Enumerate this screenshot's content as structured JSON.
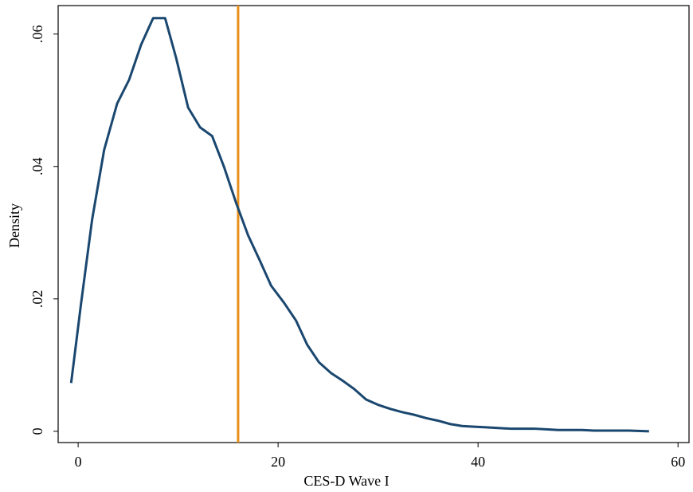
{
  "chart_data": {
    "type": "line",
    "xlabel": "CES-D Wave I",
    "ylabel": "Density",
    "x": [
      -0.7,
      0.3,
      1.4,
      2.6,
      3.9,
      5.1,
      6.3,
      7.5,
      8.7,
      9.8,
      11.0,
      12.2,
      13.4,
      14.6,
      15.8,
      17.0,
      18.2,
      19.3,
      20.6,
      21.8,
      22.9,
      24.1,
      25.3,
      26.5,
      27.6,
      28.8,
      30.0,
      31.2,
      32.4,
      33.6,
      34.8,
      36.0,
      37.2,
      38.4,
      39.6,
      40.8,
      42.0,
      43.2,
      44.4,
      45.6,
      46.8,
      48.0,
      49.2,
      50.4,
      51.6,
      52.7,
      53.9,
      55.1,
      57.1
    ],
    "series": [
      {
        "color": "#1a476f",
        "values": [
          0.0073,
          0.0194,
          0.032,
          0.0425,
          0.0495,
          0.0531,
          0.0584,
          0.0624,
          0.0624,
          0.0564,
          0.0489,
          0.0459,
          0.0446,
          0.0399,
          0.0345,
          0.0296,
          0.0257,
          0.022,
          0.0194,
          0.0167,
          0.0131,
          0.0104,
          0.0088,
          0.0076,
          0.0064,
          0.0048,
          0.004,
          0.0034,
          0.0029,
          0.0025,
          0.002,
          0.0016,
          0.0011,
          0.0008,
          0.0007,
          0.0006,
          0.0005,
          0.0004,
          0.0004,
          0.0004,
          0.0003,
          0.0002,
          0.0002,
          0.0002,
          0.0001,
          0.0001,
          0.0001,
          0.0001,
          0.0
        ]
      }
    ],
    "vlines": [
      {
        "x": 16,
        "color": "#e8901a"
      }
    ],
    "xlim": [
      -2.0,
      61.1
    ],
    "ylim": [
      -0.0017,
      0.0643
    ],
    "xticks": [
      0,
      20,
      40,
      60
    ],
    "yticks": [
      0,
      {
        "value": 0.02,
        "label": ".02"
      },
      {
        "value": 0.04,
        "label": ".04"
      },
      {
        "value": 0.06,
        "label": ".06"
      }
    ],
    "grid": false
  }
}
